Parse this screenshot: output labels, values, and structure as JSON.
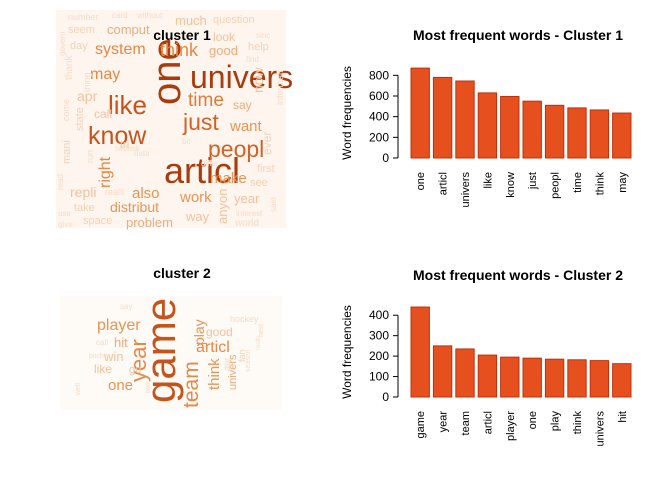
{
  "wordclouds": [
    {
      "title": "cluster 1",
      "words": [
        {
          "text": "univers",
          "weight": 1.0,
          "color": "#a83c0f"
        },
        {
          "text": "one",
          "weight": 1.0,
          "color": "#a83c0f",
          "vertical": true
        },
        {
          "text": "articl",
          "weight": 1.0,
          "color": "#a83c0f"
        },
        {
          "text": "know",
          "weight": 0.8,
          "color": "#c7531c"
        },
        {
          "text": "like",
          "weight": 0.8,
          "color": "#c7531c"
        },
        {
          "text": "just",
          "weight": 0.7,
          "color": "#d1622a"
        },
        {
          "text": "peopl",
          "weight": 0.7,
          "color": "#d1622a"
        },
        {
          "text": "time",
          "weight": 0.6,
          "color": "#e07a3c"
        },
        {
          "text": "think",
          "weight": 0.55,
          "color": "#e58848"
        },
        {
          "text": "may",
          "weight": 0.55,
          "color": "#e58848"
        },
        {
          "text": "system",
          "weight": 0.5,
          "color": "#e58848"
        },
        {
          "text": "right",
          "weight": 0.5,
          "color": "#e58848",
          "vertical": true
        },
        {
          "text": "want",
          "weight": 0.45,
          "color": "#e89556"
        },
        {
          "text": "make",
          "weight": 0.45,
          "color": "#e89556"
        },
        {
          "text": "also",
          "weight": 0.45,
          "color": "#e89556"
        },
        {
          "text": "work",
          "weight": 0.45,
          "color": "#e89556"
        },
        {
          "text": "distribut",
          "weight": 0.4,
          "color": "#e89556"
        },
        {
          "text": "problem",
          "weight": 0.4,
          "color": "#efac7c"
        },
        {
          "text": "comput",
          "weight": 0.4,
          "color": "#efac7c"
        },
        {
          "text": "good",
          "weight": 0.35,
          "color": "#efac7c"
        },
        {
          "text": "say",
          "weight": 0.35,
          "color": "#efac7c"
        },
        {
          "text": "much",
          "weight": 0.3,
          "color": "#f3c29e"
        },
        {
          "text": "look",
          "weight": 0.3,
          "color": "#f3c29e"
        },
        {
          "text": "way",
          "weight": 0.3,
          "color": "#f3c29e"
        },
        {
          "text": "anyon",
          "weight": 0.3,
          "color": "#f3c29e",
          "vertical": true
        },
        {
          "text": "year",
          "weight": 0.3,
          "color": "#f3c29e"
        },
        {
          "text": "repli",
          "weight": 0.3,
          "color": "#f3c29e"
        },
        {
          "text": "apr",
          "weight": 0.3,
          "color": "#f3c29e"
        },
        {
          "text": "call",
          "weight": 0.3,
          "color": "#f3c29e"
        },
        {
          "text": "tri",
          "weight": 0.3,
          "color": "#f3c29e"
        },
        {
          "text": "now",
          "weight": 0.3,
          "color": "#f3c29e",
          "vertical": true
        },
        {
          "text": "question",
          "weight": 0.25,
          "color": "#f6d2b6"
        },
        {
          "text": "help",
          "weight": 0.25,
          "color": "#f6d2b6"
        },
        {
          "text": "seem",
          "weight": 0.25,
          "color": "#f6d2b6"
        },
        {
          "text": "space",
          "weight": 0.25,
          "color": "#f6d2b6"
        },
        {
          "text": "take",
          "weight": 0.25,
          "color": "#f6d2b6"
        },
        {
          "text": "first",
          "weight": 0.25,
          "color": "#f6d2b6"
        },
        {
          "text": "see",
          "weight": 0.25,
          "color": "#f6d2b6"
        },
        {
          "text": "ever",
          "weight": 0.25,
          "color": "#f6d2b6",
          "vertical": true
        },
        {
          "text": "state",
          "weight": 0.25,
          "color": "#f6d2b6",
          "vertical": true
        },
        {
          "text": "mani",
          "weight": 0.25,
          "color": "#f6d2b6",
          "vertical": true
        },
        {
          "text": "day",
          "weight": 0.25,
          "color": "#f6d2b6"
        },
        {
          "text": "world",
          "weight": 0.2,
          "color": "#f8dcc6"
        },
        {
          "text": "number",
          "weight": 0.2,
          "color": "#f8dcc6"
        },
        {
          "text": "card",
          "weight": 0.15,
          "color": "#f8dcc6"
        },
        {
          "text": "without",
          "weight": 0.15,
          "color": "#f8dcc6"
        },
        {
          "text": "sinc",
          "weight": 0.15,
          "color": "#f8dcc6"
        },
        {
          "text": "find",
          "weight": 0.15,
          "color": "#f8dcc6"
        },
        {
          "text": "thank",
          "weight": 0.15,
          "color": "#f8dcc6",
          "vertical": true
        },
        {
          "text": "thing",
          "weight": 0.15,
          "color": "#f8dcc6",
          "vertical": true
        },
        {
          "text": "govern",
          "weight": 0.15,
          "color": "#f8dcc6",
          "vertical": true
        },
        {
          "text": "come",
          "weight": 0.15,
          "color": "#f8dcc6",
          "vertical": true
        },
        {
          "text": "realli",
          "weight": 0.15,
          "color": "#f8dcc6"
        },
        {
          "text": "read",
          "weight": 0.15,
          "color": "#f8dcc6",
          "vertical": true
        },
        {
          "text": "use",
          "weight": 0.15,
          "color": "#f8dcc6"
        },
        {
          "text": "give",
          "weight": 0.15,
          "color": "#f8dcc6"
        },
        {
          "text": "interest",
          "weight": 0.15,
          "color": "#f8dcc6"
        },
        {
          "text": "said",
          "weight": 0.15,
          "color": "#f8dcc6",
          "vertical": true
        },
        {
          "text": "differ",
          "weight": 0.15,
          "color": "#f8dcc6"
        },
        {
          "text": "data",
          "weight": 0.15,
          "color": "#f8dcc6"
        },
        {
          "text": "tw0ask",
          "weight": 0.15,
          "color": "#f8dcc6"
        },
        {
          "text": "bit",
          "weight": 0.15,
          "color": "#f8dcc6"
        },
        {
          "text": "run",
          "weight": 0.15,
          "color": "#f8dcc6",
          "vertical": true
        },
        {
          "text": "informati",
          "weight": 0.15,
          "color": "#f8dcc6",
          "vertical": true
        }
      ]
    },
    {
      "title": "cluster 2",
      "words": [
        {
          "text": "game",
          "weight": 1.0,
          "color": "#c7531c",
          "vertical": true
        },
        {
          "text": "year",
          "weight": 0.6,
          "color": "#e58848",
          "vertical": true
        },
        {
          "text": "team",
          "weight": 0.6,
          "color": "#e58848",
          "vertical": true
        },
        {
          "text": "articl",
          "weight": 0.5,
          "color": "#e58848"
        },
        {
          "text": "player",
          "weight": 0.45,
          "color": "#e89556"
        },
        {
          "text": "think",
          "weight": 0.45,
          "color": "#e89556",
          "vertical": true
        },
        {
          "text": "play",
          "weight": 0.45,
          "color": "#e89556",
          "vertical": true
        },
        {
          "text": "one",
          "weight": 0.4,
          "color": "#e89556"
        },
        {
          "text": "univers",
          "weight": 0.35,
          "color": "#efac7c",
          "vertical": true
        },
        {
          "text": "hit",
          "weight": 0.35,
          "color": "#efac7c"
        },
        {
          "text": "win",
          "weight": 0.3,
          "color": "#f3c29e"
        },
        {
          "text": "good",
          "weight": 0.3,
          "color": "#f3c29e"
        },
        {
          "text": "like",
          "weight": 0.3,
          "color": "#f3c29e"
        },
        {
          "text": "go",
          "weight": 0.3,
          "color": "#f3c29e"
        },
        {
          "text": "apr",
          "weight": 0.25,
          "color": "#f6d2b6",
          "vertical": true
        },
        {
          "text": "fan",
          "weight": 0.25,
          "color": "#f6d2b6",
          "vertical": true
        },
        {
          "text": "hockey",
          "weight": 0.15,
          "color": "#f8dcc6"
        },
        {
          "text": "say",
          "weight": 0.15,
          "color": "#f8dcc6"
        },
        {
          "text": "pitcher",
          "weight": 0.15,
          "color": "#f8dcc6"
        },
        {
          "text": "call",
          "weight": 0.15,
          "color": "#f8dcc6"
        },
        {
          "text": "season",
          "weight": 0.15,
          "color": "#f8dcc6",
          "vertical": true
        },
        {
          "text": "realli",
          "weight": 0.15,
          "color": "#f8dcc6",
          "vertical": true
        },
        {
          "text": "two",
          "weight": 0.15,
          "color": "#f8dcc6",
          "vertical": true
        },
        {
          "text": "well",
          "weight": 0.15,
          "color": "#f8dcc6",
          "vertical": true
        },
        {
          "text": "best",
          "weight": 0.15,
          "color": "#f8dcc6",
          "vertical": true
        }
      ]
    }
  ],
  "chart_data": [
    {
      "type": "bar",
      "title": "Most frequent words - Cluster  1",
      "ylabel": "Word frequencies",
      "xlabel": "",
      "categories": [
        "one",
        "articl",
        "univers",
        "like",
        "know",
        "just",
        "peopl",
        "time",
        "think",
        "may"
      ],
      "values": [
        870,
        780,
        745,
        630,
        595,
        550,
        510,
        485,
        465,
        435
      ],
      "ylim": [
        0,
        900
      ],
      "yticks": [
        0,
        200,
        400,
        600,
        800
      ],
      "grid": false,
      "bar_fill": "#e6501e",
      "bar_stroke": "#c0300a"
    },
    {
      "type": "bar",
      "title": "Most frequent words - Cluster  2",
      "ylabel": "Word frequencies",
      "xlabel": "",
      "categories": [
        "game",
        "year",
        "team",
        "articl",
        "player",
        "one",
        "play",
        "think",
        "univers",
        "hit"
      ],
      "values": [
        440,
        250,
        235,
        205,
        195,
        190,
        185,
        182,
        178,
        163
      ],
      "ylim": [
        0,
        450
      ],
      "yticks": [
        0,
        100,
        200,
        300,
        400
      ],
      "grid": false,
      "bar_fill": "#e6501e",
      "bar_stroke": "#c0300a"
    }
  ]
}
